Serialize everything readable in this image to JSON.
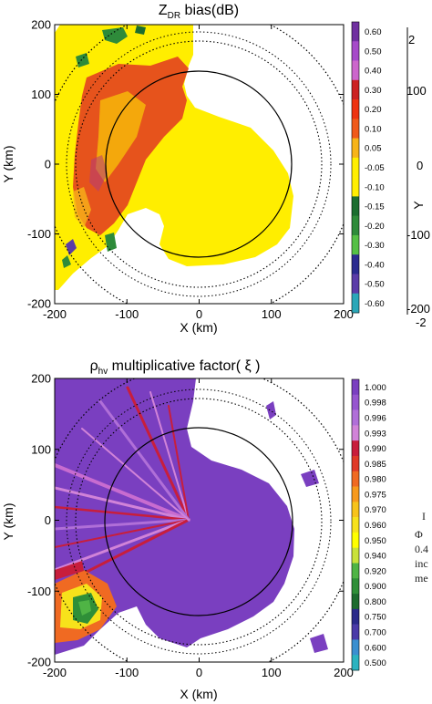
{
  "chart_data": [
    {
      "type": "heatmap",
      "title": "Z",
      "title_sub": "DR",
      "title_rest": " bias(dB)",
      "xlabel": "X (km)",
      "ylabel": "Y (km)",
      "xlim": [
        -200,
        200
      ],
      "ylim": [
        -200,
        200
      ],
      "x_ticks": [
        -200,
        -100,
        0,
        100,
        200
      ],
      "y_ticks": [
        -200,
        -100,
        0,
        100,
        200
      ],
      "x_tick_labels": [
        "-200",
        "-100",
        "0",
        "100",
        "200"
      ],
      "y_tick_labels": [
        "-200",
        "-100",
        "0",
        "100",
        "200"
      ],
      "range_rings_km": [
        125,
        165,
        210
      ],
      "colorbar": {
        "labels": [
          "0.60",
          "0.50",
          "0.40",
          "0.30",
          "0.20",
          "0.10",
          "0.05",
          "-0.05",
          "-0.10",
          "-0.15",
          "-0.20",
          "-0.30",
          "-0.40",
          "-0.50",
          "-0.60"
        ],
        "colors": [
          "#7030a0",
          "#a64ac9",
          "#cc66cc",
          "#cc2222",
          "#ee3311",
          "#f05a1a",
          "#f7b419",
          "#ffee00",
          "#ffee00",
          "#1b6d2f",
          "#2e8b3a",
          "#55c045",
          "#2b2b90",
          "#5b3ca8",
          "#2ba7b8"
        ]
      },
      "dominant_color": "#ffee00",
      "secondary_color": "#e04020"
    },
    {
      "type": "heatmap",
      "title": "ρ",
      "title_sub": "hv",
      "title_rest": " multiplicative factor( ξ )",
      "xlabel": "X (km)",
      "ylabel": "Y (km)",
      "xlim": [
        -200,
        200
      ],
      "ylim": [
        -200,
        200
      ],
      "x_ticks": [
        -200,
        -100,
        0,
        100,
        200
      ],
      "y_ticks": [
        -200,
        -100,
        0,
        100,
        200
      ],
      "x_tick_labels": [
        "-200",
        "-100",
        "0",
        "100",
        "200"
      ],
      "y_tick_labels": [
        "-200",
        "-100",
        "0",
        "100",
        "200"
      ],
      "range_rings_km": [
        125,
        165,
        210
      ],
      "colorbar": {
        "labels": [
          "1.000",
          "0.998",
          "0.996",
          "0.993",
          "0.990",
          "0.985",
          "0.980",
          "0.975",
          "0.970",
          "0.960",
          "0.950",
          "0.940",
          "0.920",
          "0.900",
          "0.800",
          "0.750",
          "0.700",
          "0.600",
          "0.500"
        ],
        "colors": [
          "#7a3fc0",
          "#9655cf",
          "#b06fd8",
          "#d183d8",
          "#c81e3c",
          "#e03a28",
          "#f06a22",
          "#f89a1c",
          "#f8c31a",
          "#f7e21b",
          "#ffff00",
          "#c9e23a",
          "#4fb445",
          "#2f8f38",
          "#1c6b2e",
          "#2a2a8a",
          "#4a3aa8",
          "#3a8fd0",
          "#2bb3c0"
        ]
      },
      "dominant_color": "#7a3fc0"
    }
  ],
  "right_panel": {
    "title_fragment": "2",
    "tick_labels": [
      "100",
      "0",
      "-100",
      "-200",
      "-2"
    ],
    "ylabel_fragment": "Y",
    "text_lines": [
      "I",
      "Φ",
      "0.4",
      "inc",
      "me"
    ]
  }
}
